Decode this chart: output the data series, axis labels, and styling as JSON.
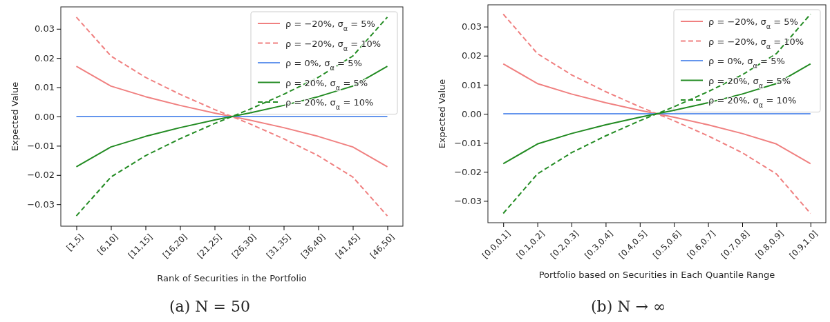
{
  "chart_data": [
    {
      "type": "line",
      "xlabel": "Rank of Securities in the Portfolio",
      "ylabel": "Expected Value",
      "annotations": [
        "(a) N = 50"
      ],
      "categories": [
        "[1,5]",
        "[6,10]",
        "[11,15]",
        "[16,20]",
        "[21,25]",
        "[26,30]",
        "[31,35]",
        "[36,40]",
        "[41,45]",
        "[46,50]"
      ],
      "ylim": [
        -0.0375,
        0.0375
      ],
      "yticks": [
        {
          "value": -0.03,
          "label": "−0.03"
        },
        {
          "value": -0.02,
          "label": "−0.02"
        },
        {
          "value": -0.01,
          "label": "−0.01"
        },
        {
          "value": 0,
          "label": "0.00"
        },
        {
          "value": 0.01,
          "label": "0.01"
        },
        {
          "value": 0.02,
          "label": "0.02"
        },
        {
          "value": 0.03,
          "label": "0.03"
        }
      ],
      "legend": "top right",
      "grid": false,
      "marker": "none",
      "series": [
        {
          "name": "ρ = −20%, σ$_{α}$ = 5%",
          "color": "#f08080",
          "line_style": "solid",
          "values": [
            0.0172,
            0.0104,
            0.0068,
            0.0038,
            0.0012,
            -0.0012,
            -0.0038,
            -0.0068,
            -0.0104,
            -0.0172
          ]
        },
        {
          "name": "ρ = −20%, σ$_{α}$ = 10%",
          "color": "#f08080",
          "line_style": "dashed",
          "values": [
            0.034,
            0.0207,
            0.0134,
            0.0076,
            0.0024,
            -0.0024,
            -0.0076,
            -0.0134,
            -0.0207,
            -0.034
          ]
        },
        {
          "name": "ρ = 0%, σ$_{α}$ = 5%",
          "color": "#6495ed",
          "line_style": "solid",
          "values": [
            0,
            0,
            0,
            0,
            0,
            0,
            0,
            0,
            0,
            0
          ]
        },
        {
          "name": "ρ = 20%, σ$_{α}$ = 5%",
          "color": "#228b22",
          "line_style": "solid",
          "values": [
            -0.0172,
            -0.0104,
            -0.0068,
            -0.0038,
            -0.0012,
            0.0012,
            0.0038,
            0.0068,
            0.0104,
            0.0172
          ]
        },
        {
          "name": "ρ = 20%, σ$_{α}$ = 10%",
          "color": "#228b22",
          "line_style": "dashed",
          "values": [
            -0.034,
            -0.0207,
            -0.0134,
            -0.0076,
            -0.0024,
            0.0024,
            0.0076,
            0.0134,
            0.0207,
            0.034
          ]
        }
      ]
    },
    {
      "type": "line",
      "xlabel": "Portfolio based on Securities in Each Quantile Range",
      "ylabel": "Expected Value",
      "annotations": [
        "(b) N → ∞"
      ],
      "categories": [
        "[0.0,0.1]",
        "[0.1,0.2]",
        "[0.2,0.3]",
        "[0.3,0.4]",
        "[0.4,0.5]",
        "[0.5,0.6]",
        "[0.6,0.7]",
        "[0.7,0.8]",
        "[0.8,0.9]",
        "[0.9,1.0]"
      ],
      "ylim": [
        -0.0375,
        0.0375
      ],
      "yticks": [
        {
          "value": -0.03,
          "label": "−0.03"
        },
        {
          "value": -0.02,
          "label": "−0.02"
        },
        {
          "value": -0.01,
          "label": "−0.01"
        },
        {
          "value": 0,
          "label": "0.00"
        },
        {
          "value": 0.01,
          "label": "0.01"
        },
        {
          "value": 0.02,
          "label": "0.02"
        },
        {
          "value": 0.03,
          "label": "0.03"
        }
      ],
      "legend": "top right",
      "grid": false,
      "marker": "none",
      "series": [
        {
          "name": "ρ = −20%, σ$_{α}$ = 5%",
          "color": "#f08080",
          "line_style": "solid",
          "values": [
            0.0172,
            0.0104,
            0.0068,
            0.0038,
            0.0012,
            -0.0012,
            -0.0038,
            -0.0068,
            -0.0104,
            -0.0172
          ]
        },
        {
          "name": "ρ = −20%, σ$_{α}$ = 10%",
          "color": "#f08080",
          "line_style": "dashed",
          "values": [
            0.0343,
            0.0207,
            0.0134,
            0.0076,
            0.0024,
            -0.0024,
            -0.0076,
            -0.0134,
            -0.0207,
            -0.0343
          ]
        },
        {
          "name": "ρ = 0%, σ$_{α}$ = 5%",
          "color": "#6495ed",
          "line_style": "solid",
          "values": [
            0,
            0,
            0,
            0,
            0,
            0,
            0,
            0,
            0,
            0
          ]
        },
        {
          "name": "ρ = 20%, σ$_{α}$ = 5%",
          "color": "#228b22",
          "line_style": "solid",
          "values": [
            -0.0172,
            -0.0104,
            -0.0068,
            -0.0038,
            -0.0012,
            0.0012,
            0.0038,
            0.0068,
            0.0104,
            0.0172
          ]
        },
        {
          "name": "ρ = 20%, σ$_{α}$ = 10%",
          "color": "#228b22",
          "line_style": "dashed",
          "values": [
            -0.0343,
            -0.0207,
            -0.0134,
            -0.0076,
            -0.0024,
            0.0024,
            0.0076,
            0.0134,
            0.0207,
            0.0343
          ]
        }
      ]
    }
  ]
}
